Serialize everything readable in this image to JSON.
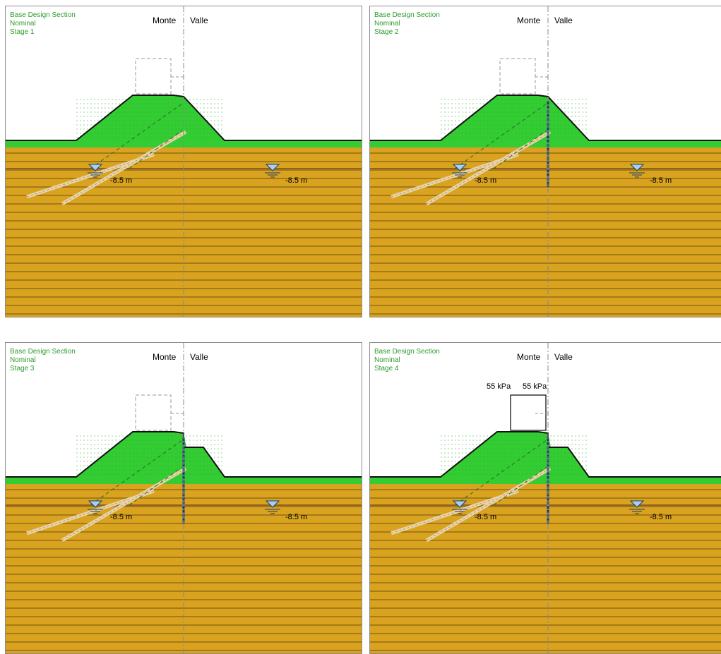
{
  "panels": [
    {
      "header": {
        "title": "Base Design Section",
        "case": "Nominal",
        "stage": "Stage 1"
      },
      "left_side": "Monte",
      "right_side": "Valle",
      "wl_left": "-8.5 m",
      "wl_right": "-8.5 m",
      "right_berm": false,
      "wall_visible": false,
      "load_applied": false,
      "load_labels": []
    },
    {
      "header": {
        "title": "Base Design Section",
        "case": "Nominal",
        "stage": "Stage 2"
      },
      "left_side": "Monte",
      "right_side": "Valle",
      "wl_left": "-8.5 m",
      "wl_right": "-8.5 m",
      "right_berm": false,
      "wall_visible": true,
      "load_applied": false,
      "load_labels": []
    },
    {
      "header": {
        "title": "Base Design Section",
        "case": "Nominal",
        "stage": "Stage 3"
      },
      "left_side": "Monte",
      "right_side": "Valle",
      "wl_left": "-8.5 m",
      "wl_right": "-8.5 m",
      "right_berm": true,
      "wall_visible": true,
      "load_applied": false,
      "load_labels": []
    },
    {
      "header": {
        "title": "Base Design Section",
        "case": "Nominal",
        "stage": "Stage 4"
      },
      "left_side": "Monte",
      "right_side": "Valle",
      "wl_left": "-8.5 m",
      "wl_right": "-8.5 m",
      "right_berm": true,
      "wall_visible": true,
      "load_applied": true,
      "load_labels": [
        "55 kPa",
        "55 kPa"
      ]
    }
  ],
  "colors": {
    "embankment": "#33cc33",
    "soil": "#d9a21f",
    "soil_line": "#4a3a10",
    "header_text": "#2e9b2e",
    "water_symbol": "#a7d0f0",
    "anchor": "#e8d3a8",
    "wall": "#1f3b5c"
  },
  "icons": {
    "water_level": "water-level-triangle-icon"
  }
}
